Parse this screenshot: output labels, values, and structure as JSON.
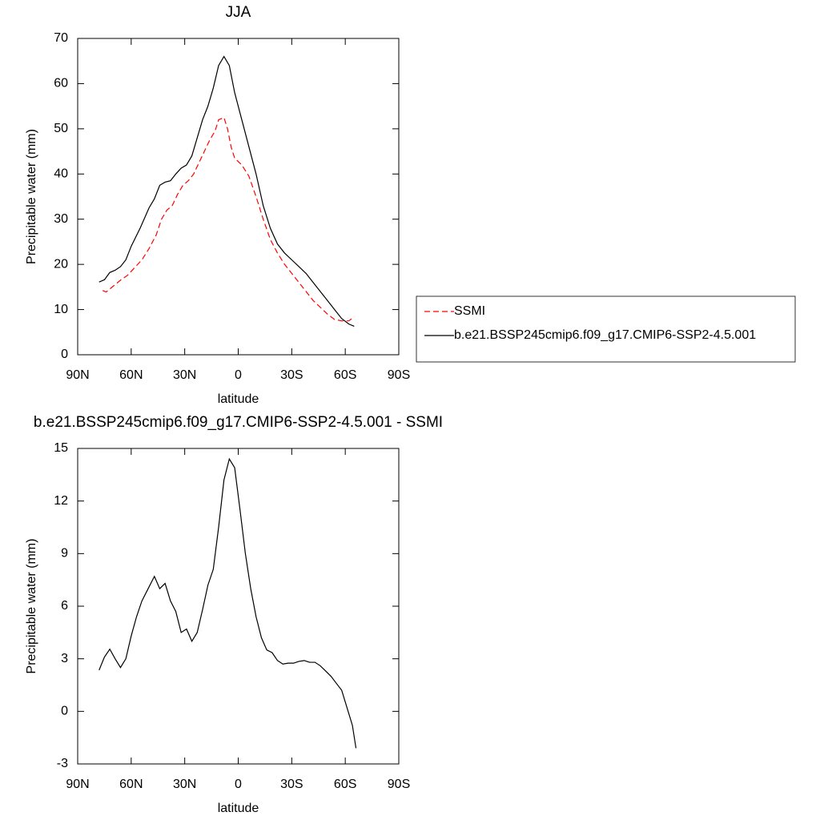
{
  "chart_data": [
    {
      "type": "line",
      "title": "JJA",
      "xlabel": "latitude",
      "ylabel": "Precipitable water (mm)",
      "xlim": [
        90,
        -90
      ],
      "ylim": [
        0,
        70
      ],
      "xticks": [
        {
          "value": 90,
          "label": "90N"
        },
        {
          "value": 60,
          "label": "60N"
        },
        {
          "value": 30,
          "label": "30N"
        },
        0,
        {
          "value": -30,
          "label": "30S"
        },
        {
          "value": -60,
          "label": "60S"
        },
        {
          "value": -90,
          "label": "90S"
        }
      ],
      "yticks": [
        0,
        10,
        20,
        30,
        40,
        50,
        60,
        70
      ],
      "legend": "right",
      "series": [
        {
          "name": "SSMI",
          "color": "#ff0000",
          "line_style": "dashed",
          "x": [
            76,
            74,
            70,
            66,
            62,
            58,
            54,
            50,
            46,
            43,
            40,
            37,
            34,
            31,
            28,
            25,
            22,
            19,
            16,
            13,
            11,
            8,
            6,
            4,
            2,
            -2,
            -6,
            -10,
            -14,
            -18,
            -22,
            -26,
            -30,
            -34,
            -38,
            -42,
            -46,
            -50,
            -54,
            -58,
            -62,
            -65
          ],
          "values": [
            14.2,
            13.9,
            15.2,
            16.5,
            17.6,
            19.3,
            21,
            23.5,
            26.5,
            30,
            32,
            33,
            35.5,
            37.5,
            38.5,
            40,
            42.5,
            45,
            47.5,
            49.5,
            52,
            52.5,
            50,
            46,
            43.5,
            42,
            39.5,
            35,
            30,
            25.5,
            22.5,
            20,
            18,
            16,
            14,
            12,
            10.5,
            9,
            7.8,
            7.5,
            7.5,
            8.4
          ]
        },
        {
          "name": "b.e21.BSSP245cmip6.f09_g17.CMIP6-SSP2-4.5.001",
          "color": "#000000",
          "line_style": "solid",
          "x": [
            78,
            75,
            72,
            69,
            66,
            63,
            60,
            55,
            50,
            47,
            44,
            41,
            38,
            35,
            32,
            29,
            26,
            23,
            20,
            17,
            14,
            11,
            8,
            5,
            2,
            -2,
            -6,
            -10,
            -14,
            -18,
            -22,
            -26,
            -30,
            -34,
            -38,
            -42,
            -46,
            -50,
            -54,
            -58,
            -62,
            -65
          ],
          "values": [
            16.1,
            16.6,
            18.2,
            18.7,
            19.5,
            21,
            24,
            28,
            32.5,
            34.5,
            37.5,
            38.2,
            38.5,
            40,
            41.3,
            42,
            44,
            48,
            52,
            55,
            59,
            64,
            66,
            64,
            58,
            52,
            46,
            40,
            33,
            28,
            24.5,
            22.5,
            21,
            19.5,
            18,
            16,
            14,
            12,
            10,
            8,
            6.8,
            6.3
          ]
        }
      ]
    },
    {
      "type": "line",
      "title": "b.e21.BSSP245cmip6.f09_g17.CMIP6-SSP2-4.5.001 - SSMI",
      "xlabel": "latitude",
      "ylabel": "Precipitable water (mm)",
      "xlim": [
        90,
        -90
      ],
      "ylim": [
        -3,
        15
      ],
      "xticks": [
        {
          "value": 90,
          "label": "90N"
        },
        {
          "value": 60,
          "label": "60N"
        },
        {
          "value": 30,
          "label": "30N"
        },
        0,
        {
          "value": -30,
          "label": "30S"
        },
        {
          "value": -60,
          "label": "60S"
        },
        {
          "value": -90,
          "label": "90S"
        }
      ],
      "yticks": [
        -3,
        0,
        3,
        6,
        9,
        12,
        15
      ],
      "color": "#000000",
      "x": [
        78,
        75,
        72,
        69,
        66,
        63,
        60,
        57,
        54,
        51,
        47,
        44,
        41,
        38,
        35,
        32,
        29,
        26,
        23,
        20,
        17,
        14,
        11,
        8,
        5,
        2,
        -1,
        -4,
        -7,
        -10,
        -13,
        -16,
        -19,
        -22,
        -25,
        -28,
        -31,
        -34,
        -37,
        -40,
        -43,
        -46,
        -49,
        -52,
        -55,
        -58,
        -61,
        -64,
        -66
      ],
      "values": [
        2.35,
        3.1,
        3.55,
        3.0,
        2.5,
        3.0,
        4.3,
        5.4,
        6.3,
        6.9,
        7.7,
        7.0,
        7.3,
        6.3,
        5.7,
        4.5,
        4.7,
        4.0,
        4.5,
        5.8,
        7.2,
        8.1,
        10.5,
        13.2,
        14.4,
        13.9,
        11.5,
        9,
        7,
        5.4,
        4.2,
        3.5,
        3.35,
        2.9,
        2.7,
        2.75,
        2.75,
        2.85,
        2.9,
        2.8,
        2.8,
        2.6,
        2.3,
        2,
        1.6,
        1.2,
        0.2,
        -0.8,
        -2.1
      ]
    }
  ]
}
